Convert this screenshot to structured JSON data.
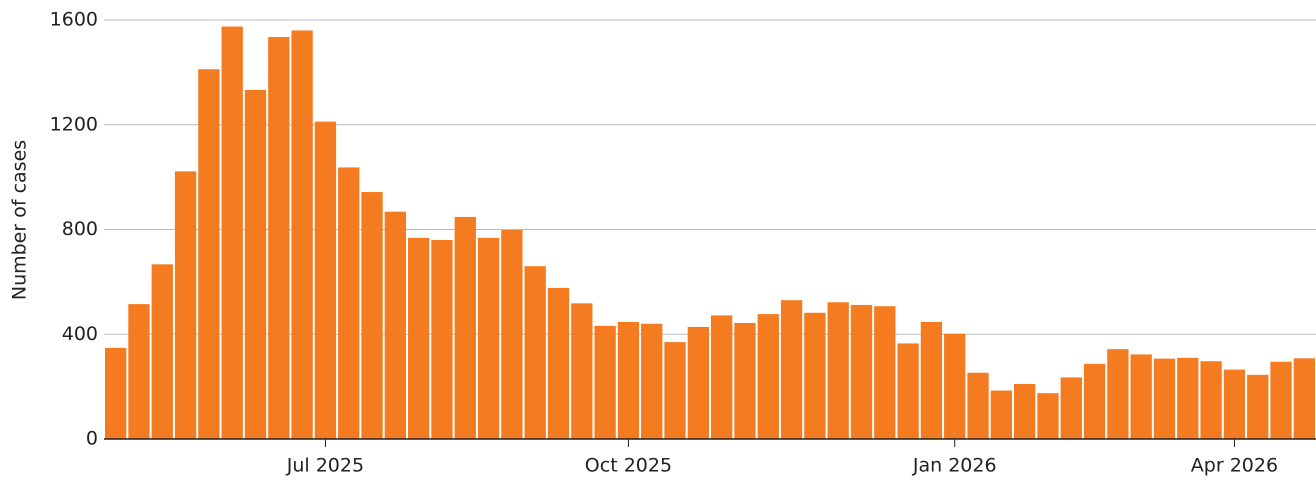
{
  "chart_data": {
    "type": "bar",
    "y_label": "Number of cases",
    "categories": [
      null,
      null,
      null,
      null,
      null,
      null,
      null,
      null,
      null,
      "Jul 2025",
      null,
      null,
      null,
      null,
      null,
      null,
      null,
      null,
      null,
      null,
      null,
      null,
      "Oct 2025",
      null,
      null,
      null,
      null,
      null,
      null,
      null,
      null,
      null,
      null,
      null,
      null,
      null,
      "Jan 2026",
      null,
      null,
      null,
      null,
      null,
      null,
      null,
      null,
      null,
      null,
      null,
      "Apr 2026",
      null,
      null,
      null
    ],
    "values": [
      348,
      515,
      667,
      1022,
      1412,
      1575,
      1333,
      1535,
      1560,
      1212,
      1037,
      943,
      868,
      768,
      760,
      848,
      768,
      798,
      660,
      577,
      518,
      432,
      447,
      440,
      370,
      428,
      472,
      443,
      477,
      530,
      482,
      522,
      512,
      507,
      365,
      447,
      402,
      253,
      185,
      210,
      175,
      235,
      287,
      343,
      323,
      307,
      310,
      297,
      265,
      245,
      295,
      308
    ],
    "color": "#f47b20",
    "ylim": [
      0,
      1600
    ],
    "yticks": [
      0,
      400,
      800,
      1200,
      1600
    ],
    "grid": true
  }
}
